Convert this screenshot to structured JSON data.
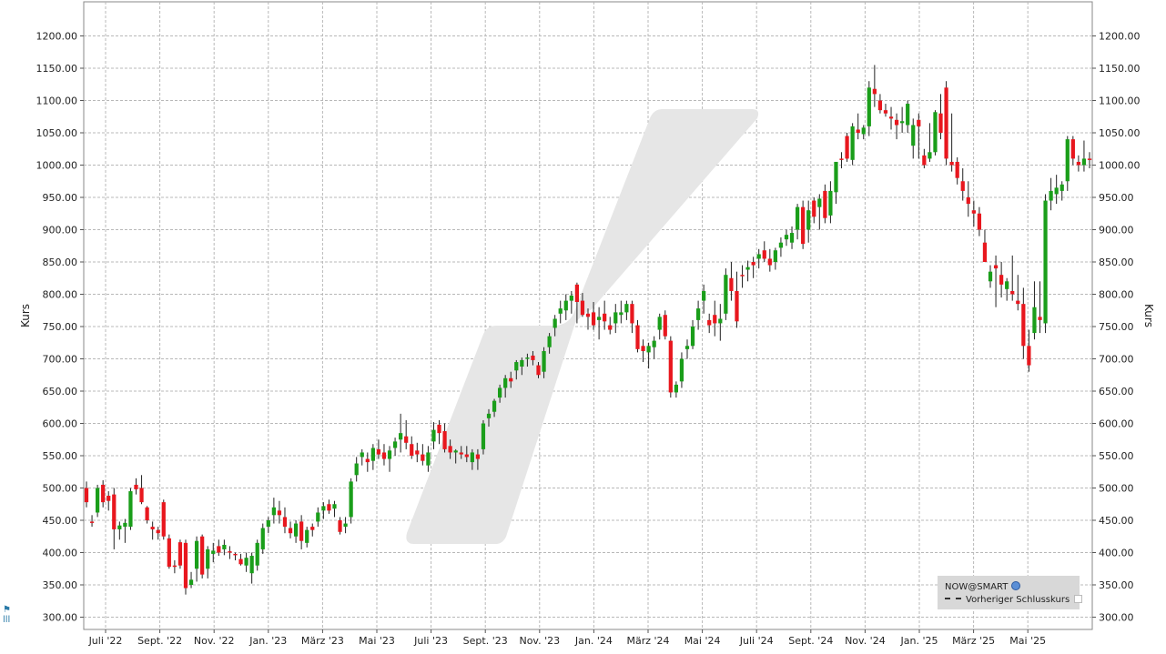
{
  "chart_data": {
    "type": "candlestick",
    "y_axis_label_left": "Kurs",
    "y_axis_label_right": "Kurs",
    "ylim": [
      290,
      1225
    ],
    "y_ticks": [
      "300.00",
      "350.00",
      "400.00",
      "450.00",
      "500.00",
      "550.00",
      "600.00",
      "650.00",
      "700.00",
      "750.00",
      "800.00",
      "850.00",
      "900.00",
      "950.00",
      "1000.00",
      "1050.00",
      "1100.00",
      "1150.00",
      "1200.00"
    ],
    "x_tick_labels": [
      "Juli '22",
      "Sept. '22",
      "Nov. '22",
      "Jan. '23",
      "März '23",
      "Mai '23",
      "Juli '23",
      "Sept. '23",
      "Nov. '23",
      "Jan. '24",
      "März '24",
      "Mai '24",
      "Juli '24",
      "Sept. '24",
      "Nov. '24",
      "Jan. '25",
      "März '25",
      "Mai '25"
    ],
    "grid": true,
    "legend_position": "bottom-right",
    "colors": {
      "up": "#1a9e1a",
      "down": "#e8171e",
      "grid": "#b8b8b8"
    },
    "series": [
      {
        "name": "NOW@SMART",
        "ohlc": [
          [
            500,
            510,
            470,
            478
          ],
          [
            448,
            458,
            440,
            446
          ],
          [
            462,
            505,
            455,
            500
          ],
          [
            505,
            512,
            470,
            478
          ],
          [
            488,
            495,
            465,
            480
          ],
          [
            490,
            500,
            405,
            436
          ],
          [
            436,
            448,
            420,
            442
          ],
          [
            440,
            452,
            415,
            446
          ],
          [
            440,
            500,
            435,
            495
          ],
          [
            505,
            515,
            490,
            498
          ],
          [
            500,
            520,
            475,
            478
          ],
          [
            470,
            472,
            445,
            450
          ],
          [
            440,
            448,
            420,
            436
          ],
          [
            435,
            440,
            420,
            430
          ],
          [
            478,
            482,
            420,
            425
          ],
          [
            422,
            428,
            375,
            378
          ],
          [
            380,
            388,
            368,
            378
          ],
          [
            416,
            420,
            375,
            380
          ],
          [
            415,
            420,
            335,
            345
          ],
          [
            350,
            370,
            345,
            358
          ],
          [
            375,
            425,
            355,
            418
          ],
          [
            425,
            428,
            360,
            366
          ],
          [
            375,
            410,
            360,
            405
          ],
          [
            398,
            415,
            385,
            403
          ],
          [
            410,
            420,
            395,
            400
          ],
          [
            405,
            420,
            396,
            412
          ],
          [
            402,
            410,
            390,
            400
          ],
          [
            398,
            400,
            388,
            396
          ],
          [
            390,
            398,
            380,
            382
          ],
          [
            380,
            400,
            370,
            392
          ],
          [
            368,
            400,
            352,
            395
          ],
          [
            380,
            420,
            372,
            415
          ],
          [
            405,
            445,
            398,
            438
          ],
          [
            440,
            455,
            430,
            450
          ],
          [
            458,
            485,
            445,
            470
          ],
          [
            465,
            480,
            445,
            458
          ],
          [
            455,
            470,
            430,
            440
          ],
          [
            438,
            448,
            422,
            430
          ],
          [
            425,
            450,
            415,
            445
          ],
          [
            448,
            458,
            405,
            418
          ],
          [
            415,
            440,
            408,
            435
          ],
          [
            440,
            445,
            425,
            435
          ],
          [
            448,
            470,
            440,
            462
          ],
          [
            465,
            478,
            452,
            472
          ],
          [
            475,
            482,
            460,
            465
          ],
          [
            468,
            480,
            455,
            475
          ],
          [
            450,
            455,
            428,
            432
          ],
          [
            440,
            455,
            430,
            445
          ],
          [
            455,
            515,
            445,
            510
          ],
          [
            520,
            548,
            510,
            538
          ],
          [
            548,
            560,
            535,
            555
          ],
          [
            545,
            555,
            525,
            540
          ],
          [
            542,
            568,
            528,
            562
          ],
          [
            560,
            575,
            545,
            552
          ],
          [
            555,
            568,
            535,
            545
          ],
          [
            545,
            565,
            525,
            558
          ],
          [
            562,
            578,
            550,
            572
          ],
          [
            575,
            615,
            555,
            585
          ],
          [
            580,
            605,
            560,
            570
          ],
          [
            568,
            580,
            545,
            550
          ],
          [
            558,
            570,
            540,
            552
          ],
          [
            552,
            568,
            535,
            542
          ],
          [
            535,
            565,
            525,
            555
          ],
          [
            572,
            602,
            560,
            590
          ],
          [
            598,
            605,
            568,
            585
          ],
          [
            588,
            600,
            555,
            560
          ],
          [
            565,
            575,
            545,
            555
          ],
          [
            555,
            560,
            538,
            558
          ],
          [
            555,
            565,
            545,
            552
          ],
          [
            552,
            565,
            540,
            548
          ],
          [
            540,
            560,
            528,
            555
          ],
          [
            552,
            560,
            528,
            545
          ],
          [
            560,
            605,
            552,
            600
          ],
          [
            608,
            622,
            595,
            615
          ],
          [
            618,
            638,
            610,
            635
          ],
          [
            640,
            660,
            632,
            655
          ],
          [
            655,
            675,
            640,
            670
          ],
          [
            670,
            680,
            655,
            665
          ],
          [
            682,
            698,
            668,
            695
          ],
          [
            688,
            702,
            675,
            698
          ],
          [
            700,
            708,
            688,
            702
          ],
          [
            705,
            712,
            690,
            698
          ],
          [
            690,
            695,
            670,
            675
          ],
          [
            680,
            718,
            670,
            712
          ],
          [
            718,
            740,
            708,
            735
          ],
          [
            748,
            768,
            735,
            762
          ],
          [
            770,
            790,
            755,
            778
          ],
          [
            775,
            800,
            760,
            790
          ],
          [
            790,
            805,
            770,
            798
          ],
          [
            815,
            818,
            755,
            788
          ],
          [
            790,
            802,
            765,
            768
          ],
          [
            770,
            778,
            745,
            765
          ],
          [
            772,
            788,
            745,
            752
          ],
          [
            760,
            780,
            730,
            765
          ],
          [
            770,
            790,
            745,
            758
          ],
          [
            752,
            765,
            738,
            745
          ],
          [
            755,
            785,
            740,
            772
          ],
          [
            768,
            790,
            755,
            772
          ],
          [
            772,
            790,
            760,
            785
          ],
          [
            785,
            790,
            740,
            755
          ],
          [
            752,
            760,
            710,
            715
          ],
          [
            720,
            730,
            695,
            712
          ],
          [
            710,
            725,
            685,
            720
          ],
          [
            718,
            735,
            700,
            728
          ],
          [
            745,
            770,
            730,
            765
          ],
          [
            768,
            775,
            730,
            735
          ],
          [
            728,
            735,
            640,
            648
          ],
          [
            648,
            665,
            640,
            660
          ],
          [
            665,
            710,
            655,
            700
          ],
          [
            715,
            730,
            700,
            720
          ],
          [
            720,
            760,
            715,
            750
          ],
          [
            760,
            790,
            745,
            778
          ],
          [
            790,
            815,
            770,
            805
          ],
          [
            760,
            770,
            740,
            752
          ],
          [
            768,
            790,
            735,
            755
          ],
          [
            755,
            785,
            728,
            762
          ],
          [
            770,
            840,
            760,
            830
          ],
          [
            825,
            850,
            790,
            805
          ],
          [
            805,
            835,
            748,
            758
          ],
          [
            830,
            845,
            810,
            828
          ],
          [
            838,
            852,
            820,
            842
          ],
          [
            850,
            858,
            825,
            845
          ],
          [
            855,
            870,
            840,
            862
          ],
          [
            868,
            882,
            850,
            855
          ],
          [
            855,
            870,
            835,
            845
          ],
          [
            850,
            872,
            838,
            868
          ],
          [
            872,
            888,
            858,
            880
          ],
          [
            885,
            900,
            875,
            892
          ],
          [
            880,
            905,
            870,
            895
          ],
          [
            900,
            940,
            885,
            935
          ],
          [
            935,
            945,
            870,
            878
          ],
          [
            900,
            945,
            880,
            930
          ],
          [
            945,
            950,
            910,
            920
          ],
          [
            935,
            955,
            900,
            948
          ],
          [
            960,
            970,
            910,
            918
          ],
          [
            922,
            975,
            910,
            960
          ],
          [
            958,
            1000,
            940,
            1005
          ],
          [
            1010,
            1020,
            995,
            1008
          ],
          [
            1045,
            1050,
            1005,
            1010
          ],
          [
            1008,
            1065,
            1000,
            1060
          ],
          [
            1055,
            1080,
            1040,
            1050
          ],
          [
            1048,
            1062,
            1040,
            1058
          ],
          [
            1060,
            1130,
            1045,
            1120
          ],
          [
            1118,
            1155,
            1090,
            1110
          ],
          [
            1100,
            1110,
            1080,
            1085
          ],
          [
            1085,
            1095,
            1075,
            1080
          ],
          [
            1075,
            1090,
            1055,
            1072
          ],
          [
            1070,
            1080,
            1040,
            1062
          ],
          [
            1065,
            1090,
            1050,
            1068
          ],
          [
            1062,
            1100,
            1050,
            1095
          ],
          [
            1030,
            1072,
            1010,
            1062
          ],
          [
            1070,
            1080,
            1010,
            1060
          ],
          [
            1015,
            1025,
            995,
            1000
          ],
          [
            1010,
            1065,
            1005,
            1020
          ],
          [
            1020,
            1085,
            1015,
            1082
          ],
          [
            1080,
            1110,
            1040,
            1050
          ],
          [
            1120,
            1130,
            1000,
            1010
          ],
          [
            1005,
            1080,
            990,
            1000
          ],
          [
            1005,
            1012,
            970,
            980
          ],
          [
            975,
            995,
            945,
            960
          ],
          [
            950,
            975,
            920,
            940
          ],
          [
            930,
            945,
            905,
            925
          ],
          [
            925,
            935,
            890,
            900
          ],
          [
            880,
            900,
            850,
            850
          ],
          [
            820,
            845,
            810,
            835
          ],
          [
            845,
            860,
            780,
            840
          ],
          [
            830,
            850,
            795,
            815
          ],
          [
            808,
            825,
            790,
            820
          ],
          [
            805,
            860,
            790,
            800
          ],
          [
            790,
            830,
            775,
            785
          ],
          [
            785,
            810,
            700,
            720
          ],
          [
            720,
            745,
            680,
            690
          ],
          [
            740,
            820,
            730,
            780
          ],
          [
            765,
            820,
            740,
            760
          ],
          [
            755,
            955,
            740,
            945
          ],
          [
            945,
            980,
            930,
            960
          ],
          [
            955,
            985,
            940,
            965
          ],
          [
            960,
            975,
            945,
            970
          ],
          [
            975,
            1045,
            960,
            1040
          ],
          [
            1040,
            1045,
            1000,
            1010
          ],
          [
            1005,
            1015,
            990,
            1000
          ],
          [
            1000,
            1038,
            990,
            1010
          ],
          [
            1010,
            1020,
            995,
            1008
          ]
        ]
      }
    ]
  },
  "legend": {
    "instrument": "NOW@SMART",
    "previous_close": "Vorheriger Schlusskurs"
  },
  "side_icon": "brand-mark-icon",
  "side_icon_text": "lll"
}
